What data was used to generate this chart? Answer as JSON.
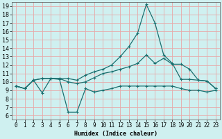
{
  "xlabel": "Humidex (Indice chaleur)",
  "bg_color": "#cff0f0",
  "grid_color": "#e8a8a8",
  "line_color": "#1a7070",
  "xlim": [
    -0.5,
    23.5
  ],
  "ylim": [
    5.5,
    19.5
  ],
  "xticks": [
    0,
    1,
    2,
    3,
    4,
    5,
    6,
    7,
    8,
    9,
    10,
    11,
    12,
    13,
    14,
    15,
    16,
    17,
    18,
    19,
    20,
    21,
    22,
    23
  ],
  "yticks": [
    6,
    7,
    8,
    9,
    10,
    11,
    12,
    13,
    14,
    15,
    16,
    17,
    18,
    19
  ],
  "curve_peak_x": [
    0,
    1,
    2,
    3,
    4,
    5,
    6,
    7,
    8,
    9,
    10,
    11,
    12,
    13,
    14,
    15,
    16,
    17,
    18,
    19,
    20,
    21,
    22,
    23
  ],
  "curve_peak_y": [
    9.5,
    9.2,
    10.2,
    10.4,
    10.4,
    10.4,
    10.4,
    10.2,
    10.8,
    11.2,
    11.5,
    12.0,
    13.0,
    14.2,
    15.8,
    19.2,
    17.0,
    13.2,
    12.2,
    10.3,
    10.3,
    10.2,
    10.1,
    9.2
  ],
  "curve_mid_x": [
    0,
    1,
    2,
    3,
    4,
    5,
    6,
    7,
    8,
    9,
    10,
    11,
    12,
    13,
    14,
    15,
    16,
    17,
    18,
    19,
    20,
    21,
    22,
    23
  ],
  "curve_mid_y": [
    9.5,
    9.2,
    10.2,
    10.4,
    10.4,
    10.4,
    10.0,
    9.8,
    10.0,
    10.5,
    11.0,
    11.2,
    11.5,
    11.8,
    12.2,
    13.2,
    12.2,
    12.8,
    12.1,
    12.1,
    11.5,
    10.2,
    10.1,
    9.2
  ],
  "curve_low_x": [
    0,
    1,
    2,
    3,
    4,
    5,
    6,
    7,
    8,
    9,
    10,
    11,
    12,
    13,
    14,
    15,
    16,
    17,
    18,
    19,
    20,
    21,
    22,
    23
  ],
  "curve_low_y": [
    9.5,
    9.2,
    10.2,
    8.7,
    10.4,
    10.3,
    6.4,
    6.4,
    9.2,
    8.8,
    9.0,
    9.2,
    9.5,
    9.5,
    9.5,
    9.5,
    9.5,
    9.5,
    9.5,
    9.2,
    9.0,
    9.0,
    8.8,
    9.0
  ]
}
